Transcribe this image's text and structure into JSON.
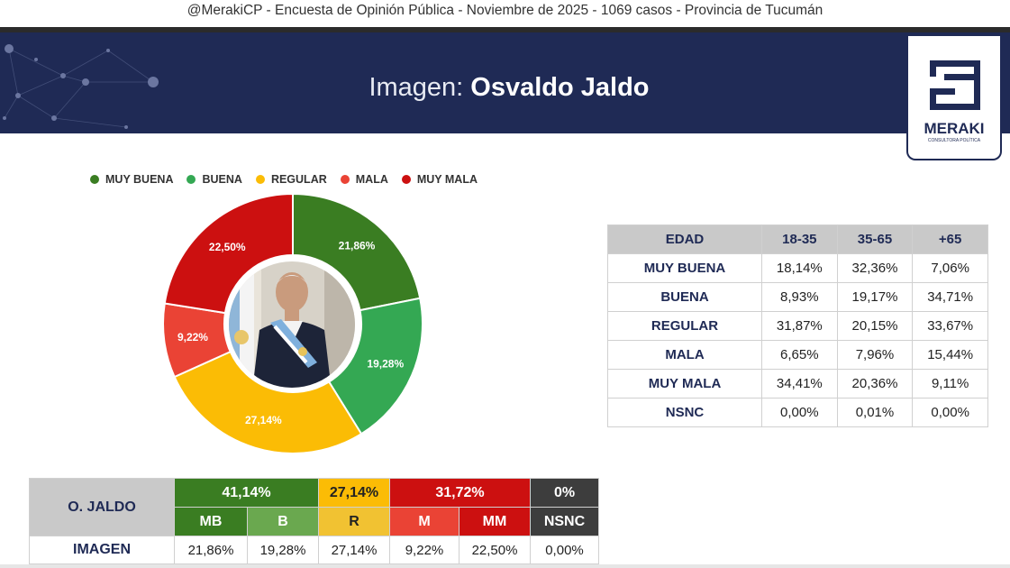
{
  "caption": "@MerakiCP - Encuesta de Opinión Pública - Noviembre de 2025 - 1069 casos - Provincia de Tucumán",
  "title": {
    "prefix": "Imagen: ",
    "name": "Osvaldo Jaldo"
  },
  "logo": {
    "text": "MERAKI",
    "tagline": "CONSULTORA POLÍTICA",
    "color": "#1f2a55"
  },
  "chart_data": {
    "type": "pie",
    "variant": "donut",
    "legend_position": "top",
    "slices": [
      {
        "label": "MUY BUENA",
        "value": 21.86,
        "display": "21,86%",
        "color": "#3a7d22"
      },
      {
        "label": "BUENA",
        "value": 19.28,
        "display": "19,28%",
        "color": "#34a853"
      },
      {
        "label": "REGULAR",
        "value": 27.14,
        "display": "27,14%",
        "color": "#fbbc05"
      },
      {
        "label": "MALA",
        "value": 9.22,
        "display": "9,22%",
        "color": "#ea4335"
      },
      {
        "label": "MUY MALA",
        "value": 22.5,
        "display": "22,50%",
        "color": "#cc1010"
      }
    ]
  },
  "age_table": {
    "headers": [
      "EDAD",
      "18-35",
      "35-65",
      "+65"
    ],
    "rows": [
      {
        "label": "MUY BUENA",
        "values": [
          "18,14%",
          "32,36%",
          "7,06%"
        ]
      },
      {
        "label": "BUENA",
        "values": [
          "8,93%",
          "19,17%",
          "34,71%"
        ]
      },
      {
        "label": "REGULAR",
        "values": [
          "31,87%",
          "20,15%",
          "33,67%"
        ]
      },
      {
        "label": "MALA",
        "values": [
          "6,65%",
          "7,96%",
          "15,44%"
        ]
      },
      {
        "label": "MUY MALA",
        "values": [
          "34,41%",
          "20,36%",
          "9,11%"
        ]
      },
      {
        "label": "NSNC",
        "values": [
          "0,00%",
          "0,01%",
          "0,00%"
        ]
      }
    ]
  },
  "summary": {
    "name": "O. JALDO",
    "groups": [
      {
        "label": "41,14%",
        "color": "#3a7d22"
      },
      {
        "label": "27,14%",
        "color": "#fbbc05"
      },
      {
        "label": "31,72%",
        "color": "#cc1010"
      },
      {
        "label": "0%",
        "color": "#3d3d3d"
      }
    ],
    "subheaders": [
      {
        "label": "MB",
        "color": "#3a7d22"
      },
      {
        "label": "B",
        "color": "#6aa84f"
      },
      {
        "label": "R",
        "color": "#f1c232"
      },
      {
        "label": "M",
        "color": "#ea4335"
      },
      {
        "label": "MM",
        "color": "#cc1010"
      },
      {
        "label": "NSNC",
        "color": "#3d3d3d"
      }
    ],
    "row_label": "IMAGEN",
    "values": [
      "21,86%",
      "19,28%",
      "27,14%",
      "9,22%",
      "22,50%",
      "0,00%"
    ]
  }
}
